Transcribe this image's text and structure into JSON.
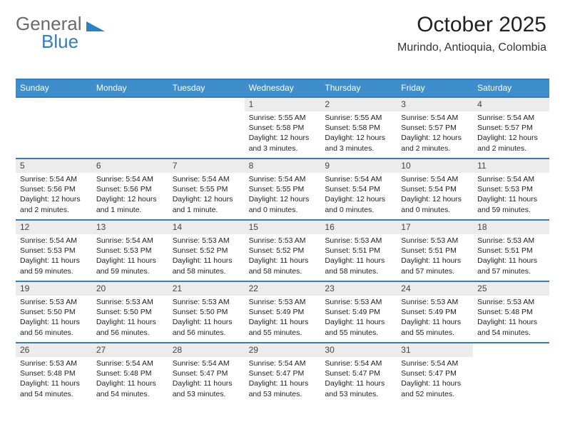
{
  "brand": {
    "part1": "General",
    "part2": "Blue"
  },
  "title": "October 2025",
  "location": "Murindo, Antioquia, Colombia",
  "colors": {
    "accent": "#2f7fc1",
    "header_bg": "#3d8ecb",
    "daynum_bg": "#ececec",
    "text": "#222222",
    "logo_gray": "#6a6a6a"
  },
  "day_headers": [
    "Sunday",
    "Monday",
    "Tuesday",
    "Wednesday",
    "Thursday",
    "Friday",
    "Saturday"
  ],
  "weeks": [
    [
      {
        "n": "",
        "sunrise": "",
        "sunset": "",
        "daylight": "",
        "empty": true
      },
      {
        "n": "",
        "sunrise": "",
        "sunset": "",
        "daylight": "",
        "empty": true
      },
      {
        "n": "",
        "sunrise": "",
        "sunset": "",
        "daylight": "",
        "empty": true
      },
      {
        "n": "1",
        "sunrise": "Sunrise: 5:55 AM",
        "sunset": "Sunset: 5:58 PM",
        "daylight": "Daylight: 12 hours and 3 minutes."
      },
      {
        "n": "2",
        "sunrise": "Sunrise: 5:55 AM",
        "sunset": "Sunset: 5:58 PM",
        "daylight": "Daylight: 12 hours and 3 minutes."
      },
      {
        "n": "3",
        "sunrise": "Sunrise: 5:54 AM",
        "sunset": "Sunset: 5:57 PM",
        "daylight": "Daylight: 12 hours and 2 minutes."
      },
      {
        "n": "4",
        "sunrise": "Sunrise: 5:54 AM",
        "sunset": "Sunset: 5:57 PM",
        "daylight": "Daylight: 12 hours and 2 minutes."
      }
    ],
    [
      {
        "n": "5",
        "sunrise": "Sunrise: 5:54 AM",
        "sunset": "Sunset: 5:56 PM",
        "daylight": "Daylight: 12 hours and 2 minutes."
      },
      {
        "n": "6",
        "sunrise": "Sunrise: 5:54 AM",
        "sunset": "Sunset: 5:56 PM",
        "daylight": "Daylight: 12 hours and 1 minute."
      },
      {
        "n": "7",
        "sunrise": "Sunrise: 5:54 AM",
        "sunset": "Sunset: 5:55 PM",
        "daylight": "Daylight: 12 hours and 1 minute."
      },
      {
        "n": "8",
        "sunrise": "Sunrise: 5:54 AM",
        "sunset": "Sunset: 5:55 PM",
        "daylight": "Daylight: 12 hours and 0 minutes."
      },
      {
        "n": "9",
        "sunrise": "Sunrise: 5:54 AM",
        "sunset": "Sunset: 5:54 PM",
        "daylight": "Daylight: 12 hours and 0 minutes."
      },
      {
        "n": "10",
        "sunrise": "Sunrise: 5:54 AM",
        "sunset": "Sunset: 5:54 PM",
        "daylight": "Daylight: 12 hours and 0 minutes."
      },
      {
        "n": "11",
        "sunrise": "Sunrise: 5:54 AM",
        "sunset": "Sunset: 5:53 PM",
        "daylight": "Daylight: 11 hours and 59 minutes."
      }
    ],
    [
      {
        "n": "12",
        "sunrise": "Sunrise: 5:54 AM",
        "sunset": "Sunset: 5:53 PM",
        "daylight": "Daylight: 11 hours and 59 minutes."
      },
      {
        "n": "13",
        "sunrise": "Sunrise: 5:54 AM",
        "sunset": "Sunset: 5:53 PM",
        "daylight": "Daylight: 11 hours and 59 minutes."
      },
      {
        "n": "14",
        "sunrise": "Sunrise: 5:53 AM",
        "sunset": "Sunset: 5:52 PM",
        "daylight": "Daylight: 11 hours and 58 minutes."
      },
      {
        "n": "15",
        "sunrise": "Sunrise: 5:53 AM",
        "sunset": "Sunset: 5:52 PM",
        "daylight": "Daylight: 11 hours and 58 minutes."
      },
      {
        "n": "16",
        "sunrise": "Sunrise: 5:53 AM",
        "sunset": "Sunset: 5:51 PM",
        "daylight": "Daylight: 11 hours and 58 minutes."
      },
      {
        "n": "17",
        "sunrise": "Sunrise: 5:53 AM",
        "sunset": "Sunset: 5:51 PM",
        "daylight": "Daylight: 11 hours and 57 minutes."
      },
      {
        "n": "18",
        "sunrise": "Sunrise: 5:53 AM",
        "sunset": "Sunset: 5:51 PM",
        "daylight": "Daylight: 11 hours and 57 minutes."
      }
    ],
    [
      {
        "n": "19",
        "sunrise": "Sunrise: 5:53 AM",
        "sunset": "Sunset: 5:50 PM",
        "daylight": "Daylight: 11 hours and 56 minutes."
      },
      {
        "n": "20",
        "sunrise": "Sunrise: 5:53 AM",
        "sunset": "Sunset: 5:50 PM",
        "daylight": "Daylight: 11 hours and 56 minutes."
      },
      {
        "n": "21",
        "sunrise": "Sunrise: 5:53 AM",
        "sunset": "Sunset: 5:50 PM",
        "daylight": "Daylight: 11 hours and 56 minutes."
      },
      {
        "n": "22",
        "sunrise": "Sunrise: 5:53 AM",
        "sunset": "Sunset: 5:49 PM",
        "daylight": "Daylight: 11 hours and 55 minutes."
      },
      {
        "n": "23",
        "sunrise": "Sunrise: 5:53 AM",
        "sunset": "Sunset: 5:49 PM",
        "daylight": "Daylight: 11 hours and 55 minutes."
      },
      {
        "n": "24",
        "sunrise": "Sunrise: 5:53 AM",
        "sunset": "Sunset: 5:49 PM",
        "daylight": "Daylight: 11 hours and 55 minutes."
      },
      {
        "n": "25",
        "sunrise": "Sunrise: 5:53 AM",
        "sunset": "Sunset: 5:48 PM",
        "daylight": "Daylight: 11 hours and 54 minutes."
      }
    ],
    [
      {
        "n": "26",
        "sunrise": "Sunrise: 5:53 AM",
        "sunset": "Sunset: 5:48 PM",
        "daylight": "Daylight: 11 hours and 54 minutes."
      },
      {
        "n": "27",
        "sunrise": "Sunrise: 5:54 AM",
        "sunset": "Sunset: 5:48 PM",
        "daylight": "Daylight: 11 hours and 54 minutes."
      },
      {
        "n": "28",
        "sunrise": "Sunrise: 5:54 AM",
        "sunset": "Sunset: 5:47 PM",
        "daylight": "Daylight: 11 hours and 53 minutes."
      },
      {
        "n": "29",
        "sunrise": "Sunrise: 5:54 AM",
        "sunset": "Sunset: 5:47 PM",
        "daylight": "Daylight: 11 hours and 53 minutes."
      },
      {
        "n": "30",
        "sunrise": "Sunrise: 5:54 AM",
        "sunset": "Sunset: 5:47 PM",
        "daylight": "Daylight: 11 hours and 53 minutes."
      },
      {
        "n": "31",
        "sunrise": "Sunrise: 5:54 AM",
        "sunset": "Sunset: 5:47 PM",
        "daylight": "Daylight: 11 hours and 52 minutes."
      },
      {
        "n": "",
        "sunrise": "",
        "sunset": "",
        "daylight": "",
        "empty": true
      }
    ]
  ]
}
